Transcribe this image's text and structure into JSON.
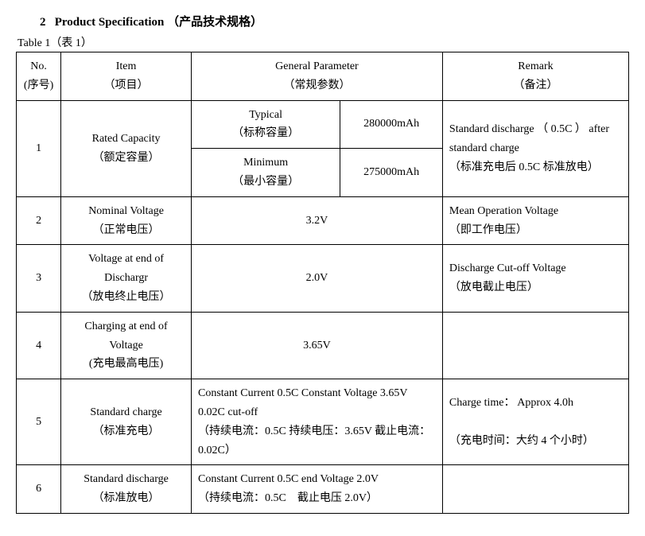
{
  "heading": {
    "number": "2",
    "title_en": "Product Specification",
    "title_zh": "（产品技术规格）"
  },
  "caption": "Table 1（表 1）",
  "header": {
    "no": {
      "en": "No.",
      "zh": "(序号)"
    },
    "item": {
      "en": "Item",
      "zh": "（项目）"
    },
    "param": {
      "en": "General Parameter",
      "zh": "（常规参数）"
    },
    "remark": {
      "en": "Remark",
      "zh": "（备注）"
    }
  },
  "rows": {
    "r1": {
      "no": "1",
      "item_en": "Rated Capacity",
      "item_zh": "（额定容量）",
      "typical_en": "Typical",
      "typical_zh": "（标称容量）",
      "typical_val": "280000mAh",
      "min_en": "Minimum",
      "min_zh": "（最小容量）",
      "min_val": "275000mAh",
      "remark_en": "Standard discharge （ 0.5C ） after standard charge",
      "remark_zh": "（标准充电后 0.5C 标准放电）"
    },
    "r2": {
      "no": "2",
      "item_en": "Nominal Voltage",
      "item_zh": "（正常电压）",
      "param": "3.2V",
      "remark_en": "Mean Operation Voltage",
      "remark_zh": "（即工作电压）"
    },
    "r3": {
      "no": "3",
      "item_en": "Voltage at end of Dischargr",
      "item_zh": "（放电终止电压）",
      "param": "2.0V",
      "remark_en": "Discharge Cut-off Voltage",
      "remark_zh": "（放电截止电压）"
    },
    "r4": {
      "no": "4",
      "item_en": "Charging at end of Voltage",
      "item_zh": "(充电最高电压)",
      "param": "3.65V",
      "remark": ""
    },
    "r5": {
      "no": "5",
      "item_en": "Standard charge",
      "item_zh": "（标准充电）",
      "param_en": "Constant Current 0.5C Constant Voltage 3.65V 0.02C cut-off",
      "param_zh": "（持续电流：0.5C 持续电压：3.65V 截止电流：0.02C）",
      "remark_en": "Charge time： Approx 4.0h",
      "remark_zh": "（充电时间：大约 4 个小时）"
    },
    "r6": {
      "no": "6",
      "item_en": "Standard discharge",
      "item_zh": "（标准放电）",
      "param_en": "Constant Current 0.5C end Voltage 2.0V",
      "param_zh": "（持续电流：0.5C　截止电压 2.0V）",
      "remark": ""
    }
  }
}
